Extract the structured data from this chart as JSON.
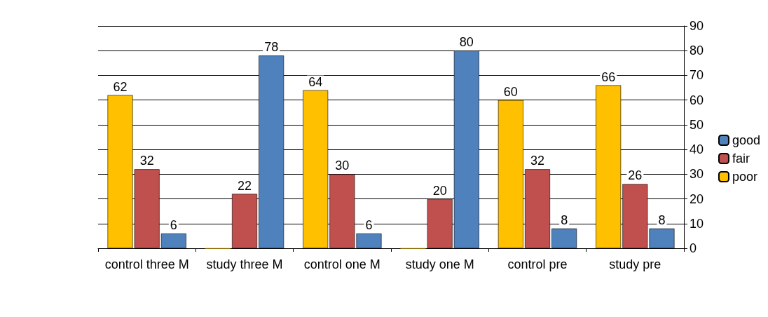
{
  "chart_data": {
    "type": "bar",
    "categories": [
      "control three M",
      "study three M",
      "control one M",
      "study one M",
      "control pre",
      "study pre"
    ],
    "series": [
      {
        "name": "poor",
        "color": "#ffc000",
        "values": [
          62,
          0,
          64,
          0,
          60,
          66
        ],
        "value_labels": [
          "62",
          null,
          "64",
          null,
          "60",
          "66"
        ]
      },
      {
        "name": "fair",
        "color": "#c0504d",
        "values": [
          32,
          22,
          30,
          20,
          32,
          26
        ],
        "value_labels": [
          "32",
          "22",
          "30",
          "20",
          "32",
          "26"
        ]
      },
      {
        "name": "good",
        "color": "#4f81bd",
        "values": [
          6,
          78,
          6,
          80,
          8,
          8
        ],
        "value_labels": [
          "6",
          "78",
          "6",
          "80",
          "8",
          "8"
        ]
      }
    ],
    "ylim": [
      0,
      90
    ],
    "yticks": [
      0,
      10,
      20,
      30,
      40,
      50,
      60,
      70,
      80,
      90
    ],
    "grid": "y",
    "legend": "right"
  }
}
